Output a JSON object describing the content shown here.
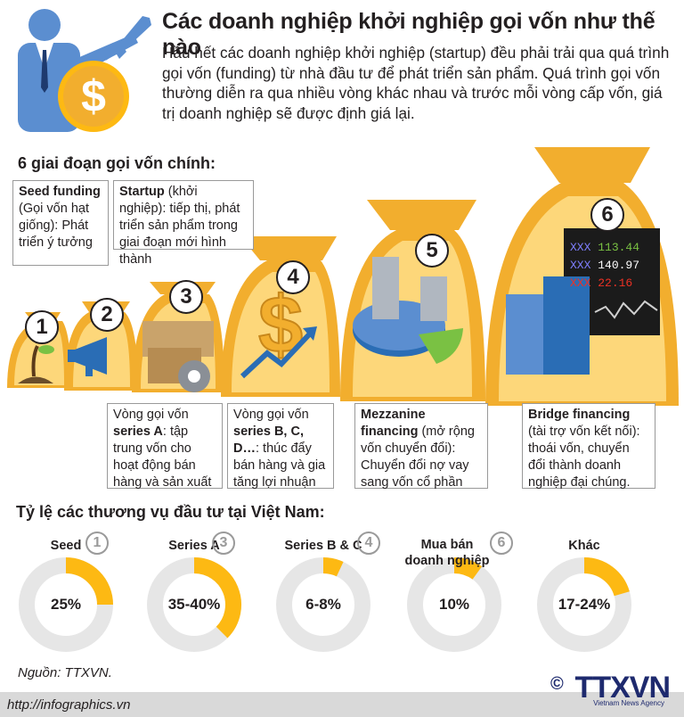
{
  "header": {
    "title": "Các doanh nghiệp khởi nghiệp gọi vốn như thế nào",
    "intro": "Hầu hết các doanh nghiệp khởi nghiệp (startup) đều phải trải qua quá trình gọi vốn (funding) từ nhà đầu tư để phát triển sản phẩm. Quá trình gọi vốn thường diễn ra qua nhiều vòng khác nhau và trước mỗi vòng cấp vốn, giá trị doanh nghiệp sẽ được định giá lại."
  },
  "stages_section": {
    "heading": "6 giai đoạn gọi vốn chính:",
    "numbers": [
      "1",
      "2",
      "3",
      "4",
      "5",
      "6"
    ],
    "stock_board": {
      "rows": [
        {
          "code": "XXX",
          "value": "113.44",
          "color": "#7ac143"
        },
        {
          "code": "XXX",
          "value": "140.97",
          "color": "#ffffff"
        },
        {
          "code": "XXX",
          "value": "22.16",
          "color": "#ee3124"
        }
      ]
    },
    "callouts": {
      "seed": {
        "title": "Seed funding",
        "text": "(Gọi vốn hạt giống): Phát triển ý tưởng"
      },
      "startup": {
        "title": "Startup",
        "text": " (khởi nghiệp): tiếp thị, phát triển sản phẩm trong giai đoạn mới hình thành"
      },
      "series_a": {
        "pre": "Vòng gọi vốn",
        "title": "series A",
        "text": ": tập trung vốn cho hoạt động bán hàng và sản xuất"
      },
      "series_b": {
        "pre": "Vòng gọi vốn",
        "title": "series B, C, D…",
        "text": ": thúc đẩy bán hàng và gia tăng lợi nhuận"
      },
      "mezzanine": {
        "title": "Mezzanine financing",
        "text": " (mở rộng vốn chuyển đổi): Chuyển đổi nợ vay sang vốn cổ phần"
      },
      "bridge": {
        "title": "Bridge financing",
        "text": " (tài trợ vốn kết nối): thoái vốn, chuyển đổi thành doanh nghiệp đại chúng."
      }
    }
  },
  "ratio_section": {
    "heading": "Tỷ lệ các thương vụ đầu tư tại Việt Nam:",
    "accent_color": "#fdb913",
    "ring_color": "#e6e6e6",
    "items": [
      {
        "label": "Seed",
        "stage": "1",
        "value": "25%",
        "fraction": 0.25
      },
      {
        "label": "Series A",
        "stage": "3",
        "value": "35-40%",
        "fraction": 0.375
      },
      {
        "label": "Series B & C",
        "stage": "4",
        "value": "6-8%",
        "fraction": 0.07
      },
      {
        "label": "Mua bán doanh nghiệp",
        "stage": "6",
        "value": "10%",
        "fraction": 0.1
      },
      {
        "label": "Khác",
        "stage": "",
        "value": "17-24%",
        "fraction": 0.205
      }
    ]
  },
  "footer": {
    "source": "Nguồn: TTXVN.",
    "url": "http://infographics.vn",
    "logo": "TTXVN",
    "logo_sub": "Vietnam News Agency",
    "copyright": "©"
  },
  "colors": {
    "bag": "#f2ae2e",
    "bag_inner": "#fdd77a",
    "money_blue": "#2a6db5"
  }
}
